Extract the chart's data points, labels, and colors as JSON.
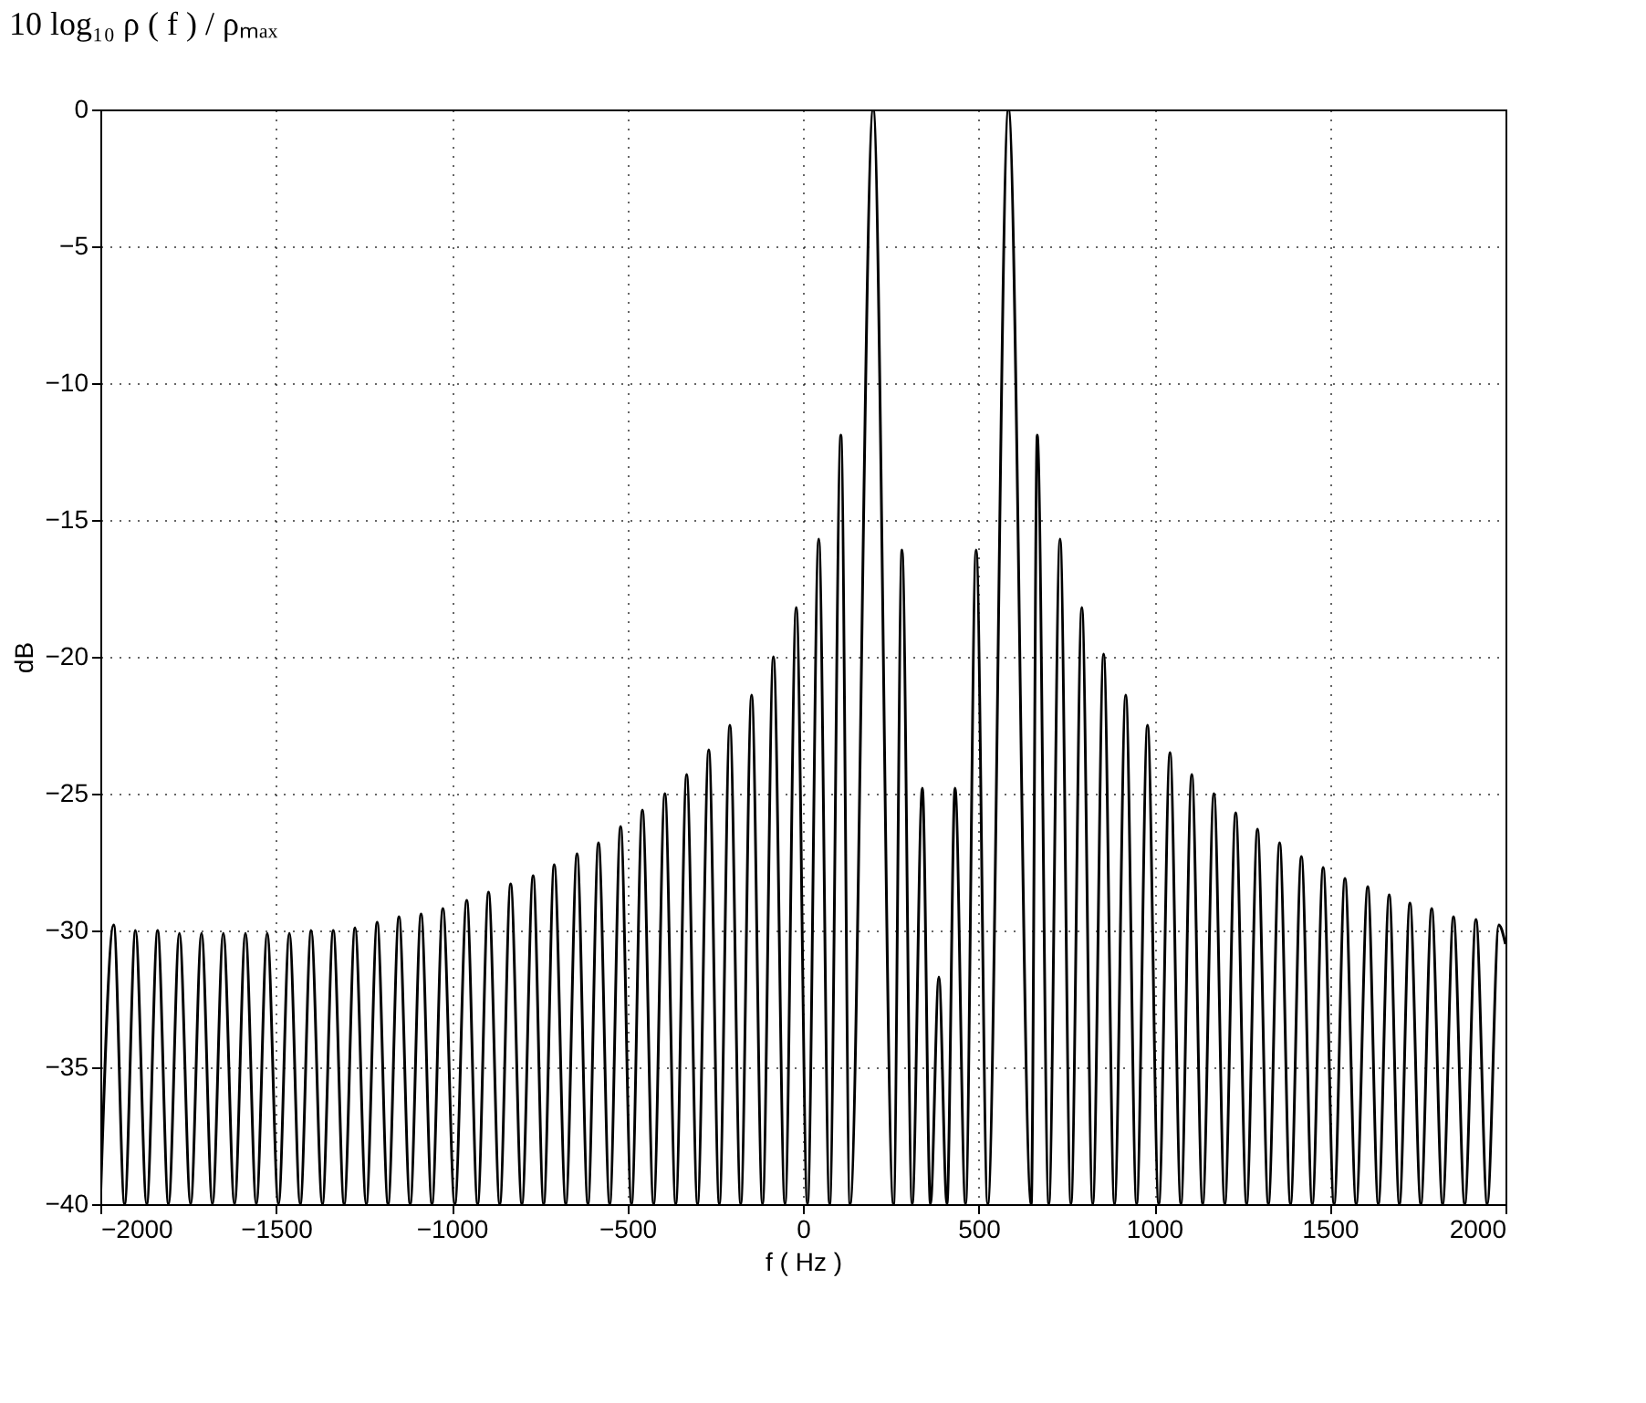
{
  "chart_data": {
    "type": "line",
    "title": "10 log₁₀ ρ ( f ) / ρₘₐₓ",
    "xlabel": "f ( Hz )",
    "ylabel": "dB",
    "xlim": [
      -2000,
      2000
    ],
    "xticks": [
      -2000,
      -1500,
      -1000,
      -500,
      0,
      500,
      1000,
      1500,
      2000
    ],
    "ylim": [
      -40,
      0
    ],
    "yticks": [
      -40,
      -35,
      -30,
      -25,
      -20,
      -15,
      -10,
      -5,
      0
    ],
    "grid": true,
    "line_style": "solid",
    "series": [
      {
        "color": "#000000",
        "x": [
          -2000,
          -1962,
          -1931,
          -1900,
          -1868,
          -1837,
          -1806,
          -1775,
          -1743,
          -1712,
          -1681,
          -1650,
          -1618,
          -1587,
          -1556,
          -1525,
          -1493,
          -1462,
          -1431,
          -1400,
          -1368,
          -1337,
          -1306,
          -1275,
          -1243,
          -1212,
          -1181,
          -1150,
          -1118,
          -1087,
          -1056,
          -1025,
          -991,
          -957,
          -926,
          -895,
          -863,
          -832,
          -800,
          -768,
          -738,
          -708,
          -675,
          -643,
          -612,
          -582,
          -550,
          -519,
          -488,
          -457,
          -425,
          -393,
          -362,
          -331,
          -300,
          -268,
          -238,
          -208,
          -177,
          -146,
          -115,
          -84,
          -51,
          -19,
          13,
          45,
          76,
          108,
          134,
          200,
          258,
          282,
          311,
          340,
          363,
          387,
          410,
          433,
          463,
          493,
          526,
          585,
          650,
          667,
          700,
          732,
          763,
          794,
          825,
          856,
          887,
          919,
          950,
          981,
          1013,
          1045,
          1076,
          1107,
          1138,
          1170,
          1201,
          1232,
          1263,
          1294,
          1325,
          1357,
          1388,
          1419,
          1450,
          1481,
          1512,
          1543,
          1575,
          1608,
          1638,
          1669,
          1698,
          1728,
          1759,
          1790,
          1821,
          1852,
          1884,
          1916,
          1948,
          1981,
          2000
        ],
        "values": [
          -40,
          -29.8,
          -40,
          -30.0,
          -40,
          -30.0,
          -40,
          -30.1,
          -40,
          -30.1,
          -40,
          -30.1,
          -40,
          -30.1,
          -40,
          -30.1,
          -40,
          -30.1,
          -40,
          -30.0,
          -40,
          -30.0,
          -40,
          -29.9,
          -40,
          -29.7,
          -40,
          -29.5,
          -40,
          -29.4,
          -40,
          -29.2,
          -40,
          -28.9,
          -40,
          -28.6,
          -40,
          -28.3,
          -40,
          -28.0,
          -40,
          -27.6,
          -40,
          -27.2,
          -40,
          -26.8,
          -40,
          -26.2,
          -40,
          -25.6,
          -40,
          -25.0,
          -40,
          -24.3,
          -40,
          -23.4,
          -40,
          -22.5,
          -40,
          -21.4,
          -40,
          -20.0,
          -40,
          -18.2,
          -40,
          -15.7,
          -40,
          -11.9,
          -40,
          0,
          -40,
          -16.1,
          -40,
          -24.8,
          -40,
          -31.7,
          -40,
          -24.8,
          -40,
          -16.1,
          -40,
          0,
          -40,
          -11.9,
          -40,
          -15.7,
          -40,
          -18.2,
          -40,
          -19.9,
          -40,
          -21.4,
          -40,
          -22.5,
          -40,
          -23.5,
          -40,
          -24.3,
          -40,
          -25.0,
          -40,
          -25.7,
          -40,
          -26.3,
          -40,
          -26.8,
          -40,
          -27.3,
          -40,
          -27.7,
          -40,
          -28.1,
          -40,
          -28.4,
          -40,
          -28.7,
          -40,
          -29.0,
          -40,
          -29.2,
          -40,
          -29.5,
          -40,
          -29.6,
          -40,
          -29.8,
          -30.5
        ]
      }
    ]
  }
}
